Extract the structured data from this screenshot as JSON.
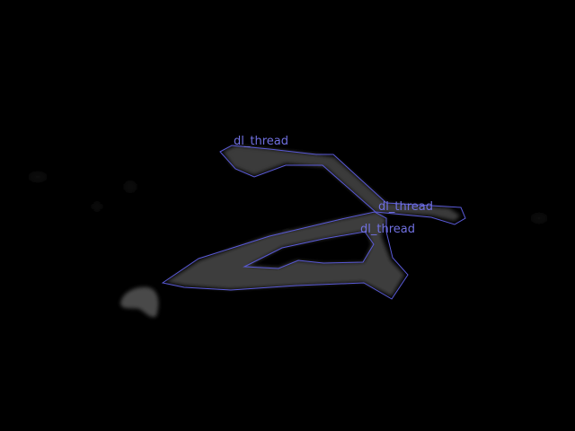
{
  "colors": {
    "background": "#000000",
    "annotation_outline": "#5a5ad8",
    "annotation_label": "#7070e0",
    "thread_fill": "#3a3a3a",
    "blob_fill": "#4a4a4a"
  },
  "annotations": [
    {
      "label": "dl_thread"
    },
    {
      "label": "dl_thread"
    },
    {
      "label": "dl_thread"
    }
  ]
}
